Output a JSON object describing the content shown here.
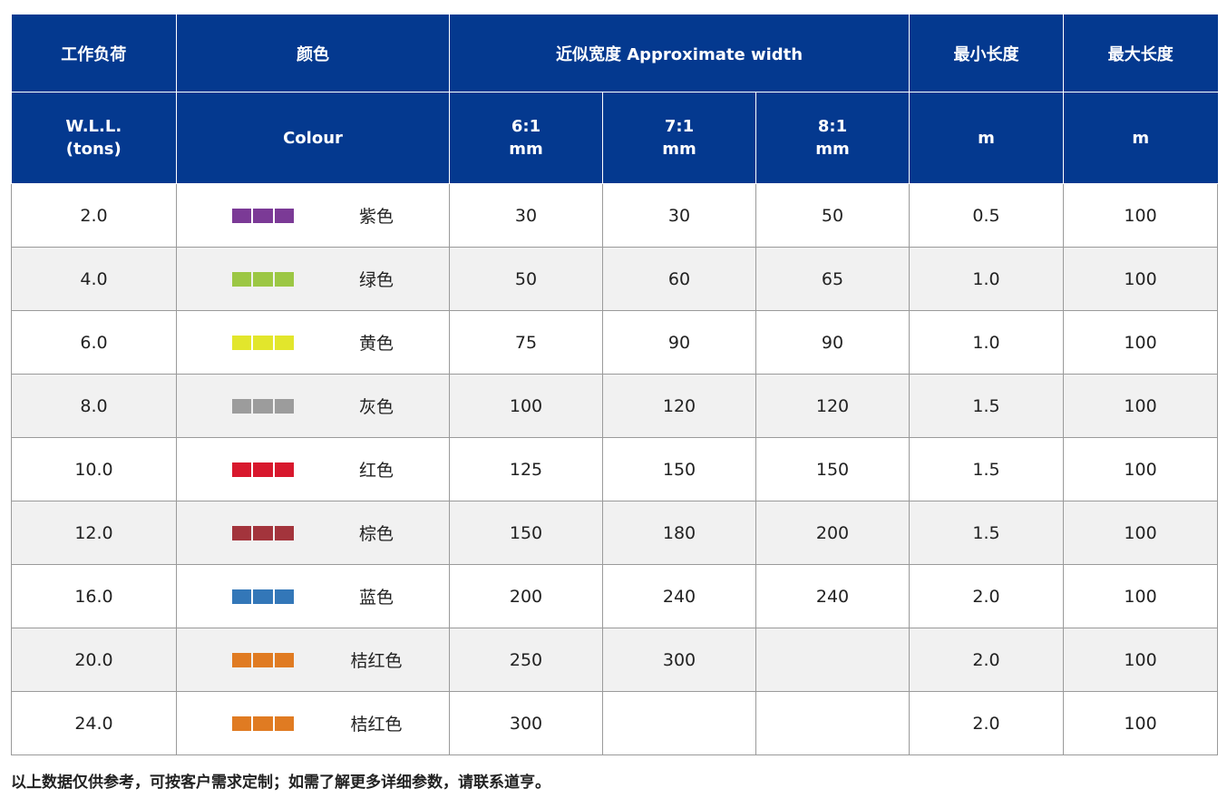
{
  "header": {
    "row1": {
      "wll_cn": "工作负荷",
      "colour_cn": "颜色",
      "width": "近似宽度 Approximate width",
      "min_length_cn": "最小长度",
      "max_length_cn": "最大长度"
    },
    "row2": {
      "wll_line1": "W.L.L.",
      "wll_line2": "(tons)",
      "colour": "Colour",
      "w61_ratio": "6:1",
      "w61_unit": "mm",
      "w71_ratio": "7:1",
      "w71_unit": "mm",
      "w81_ratio": "8:1",
      "w81_unit": "mm",
      "min_unit": "m",
      "max_unit": "m"
    },
    "background_color": "#04398f"
  },
  "rows": [
    {
      "wll": "2.0",
      "colour_name": "紫色",
      "swatch_color": "#7b3a96",
      "w61": "30",
      "w71": "30",
      "w81": "50",
      "min_len": "0.5",
      "max_len": "100"
    },
    {
      "wll": "4.0",
      "colour_name": "绿色",
      "swatch_color": "#9cc744",
      "w61": "50",
      "w71": "60",
      "w81": "65",
      "min_len": "1.0",
      "max_len": "100"
    },
    {
      "wll": "6.0",
      "colour_name": "黄色",
      "swatch_color": "#e2e62c",
      "w61": "75",
      "w71": "90",
      "w81": "90",
      "min_len": "1.0",
      "max_len": "100"
    },
    {
      "wll": "8.0",
      "colour_name": "灰色",
      "swatch_color": "#9c9c9c",
      "w61": "100",
      "w71": "120",
      "w81": "120",
      "min_len": "1.5",
      "max_len": "100"
    },
    {
      "wll": "10.0",
      "colour_name": "红色",
      "swatch_color": "#d8182d",
      "w61": "125",
      "w71": "150",
      "w81": "150",
      "min_len": "1.5",
      "max_len": "100"
    },
    {
      "wll": "12.0",
      "colour_name": "棕色",
      "swatch_color": "#a3343c",
      "w61": "150",
      "w71": "180",
      "w81": "200",
      "min_len": "1.5",
      "max_len": "100"
    },
    {
      "wll": "16.0",
      "colour_name": "蓝色",
      "swatch_color": "#3377b8",
      "w61": "200",
      "w71": "240",
      "w81": "240",
      "min_len": "2.0",
      "max_len": "100"
    },
    {
      "wll": "20.0",
      "colour_name": "桔红色",
      "swatch_color": "#e07b22",
      "w61": "250",
      "w71": "300",
      "w81": "",
      "min_len": "2.0",
      "max_len": "100"
    },
    {
      "wll": "24.0",
      "colour_name": "桔红色",
      "swatch_color": "#e07b22",
      "w61": "300",
      "w71": "",
      "w81": "",
      "min_len": "2.0",
      "max_len": "100"
    }
  ],
  "footnote": "以上数据仅供参考，可按客户需求定制；如需了解更多详细参数，请联系道亨。"
}
